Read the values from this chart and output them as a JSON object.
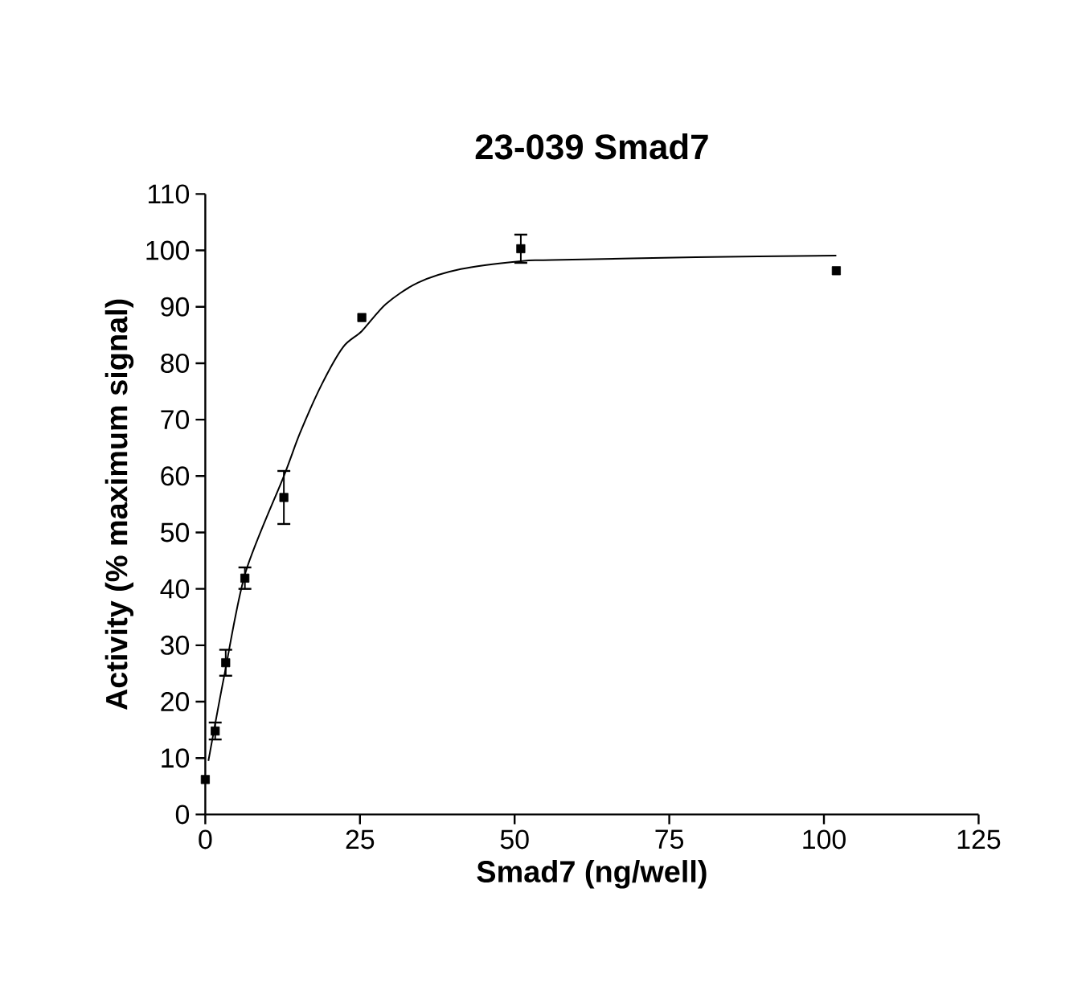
{
  "chart_data": {
    "type": "scatter",
    "title": "23-039 Smad7",
    "xlabel": "Smad7 (ng/well)",
    "ylabel": "Activity (% maximum signal)",
    "xlim": [
      0,
      125
    ],
    "xticks": [
      0,
      25,
      50,
      75,
      100,
      125
    ],
    "ylim": [
      0,
      110
    ],
    "yticks": [
      0,
      10,
      20,
      30,
      40,
      50,
      60,
      70,
      80,
      90,
      100,
      110
    ],
    "series": [
      {
        "type": "scatter",
        "color": "#000000",
        "marker": "square",
        "x": [
          0,
          1.6,
          3.3,
          6.4,
          12.7,
          25.3,
          51,
          102
        ],
        "values": [
          6.2,
          14.8,
          26.9,
          41.9,
          56.2,
          88.1,
          100.3,
          96.4
        ],
        "errors": [
          null,
          1.5,
          2.3,
          1.9,
          4.7,
          null,
          2.5,
          null
        ]
      },
      {
        "type": "line",
        "color": "#000000",
        "marker": "none",
        "line_style": "solid",
        "x": [
          0.5,
          3.1,
          6.5,
          12.7,
          15.3,
          18.8,
          22.3,
          25.3,
          29.2,
          34.4,
          41.3,
          51,
          56,
          79.3,
          102
        ],
        "values": [
          9.5,
          24.8,
          42.9,
          60,
          67.6,
          76.2,
          82.9,
          85.7,
          90.5,
          94.3,
          96.7,
          98.1,
          98.3,
          98.8,
          99.1
        ]
      }
    ]
  }
}
